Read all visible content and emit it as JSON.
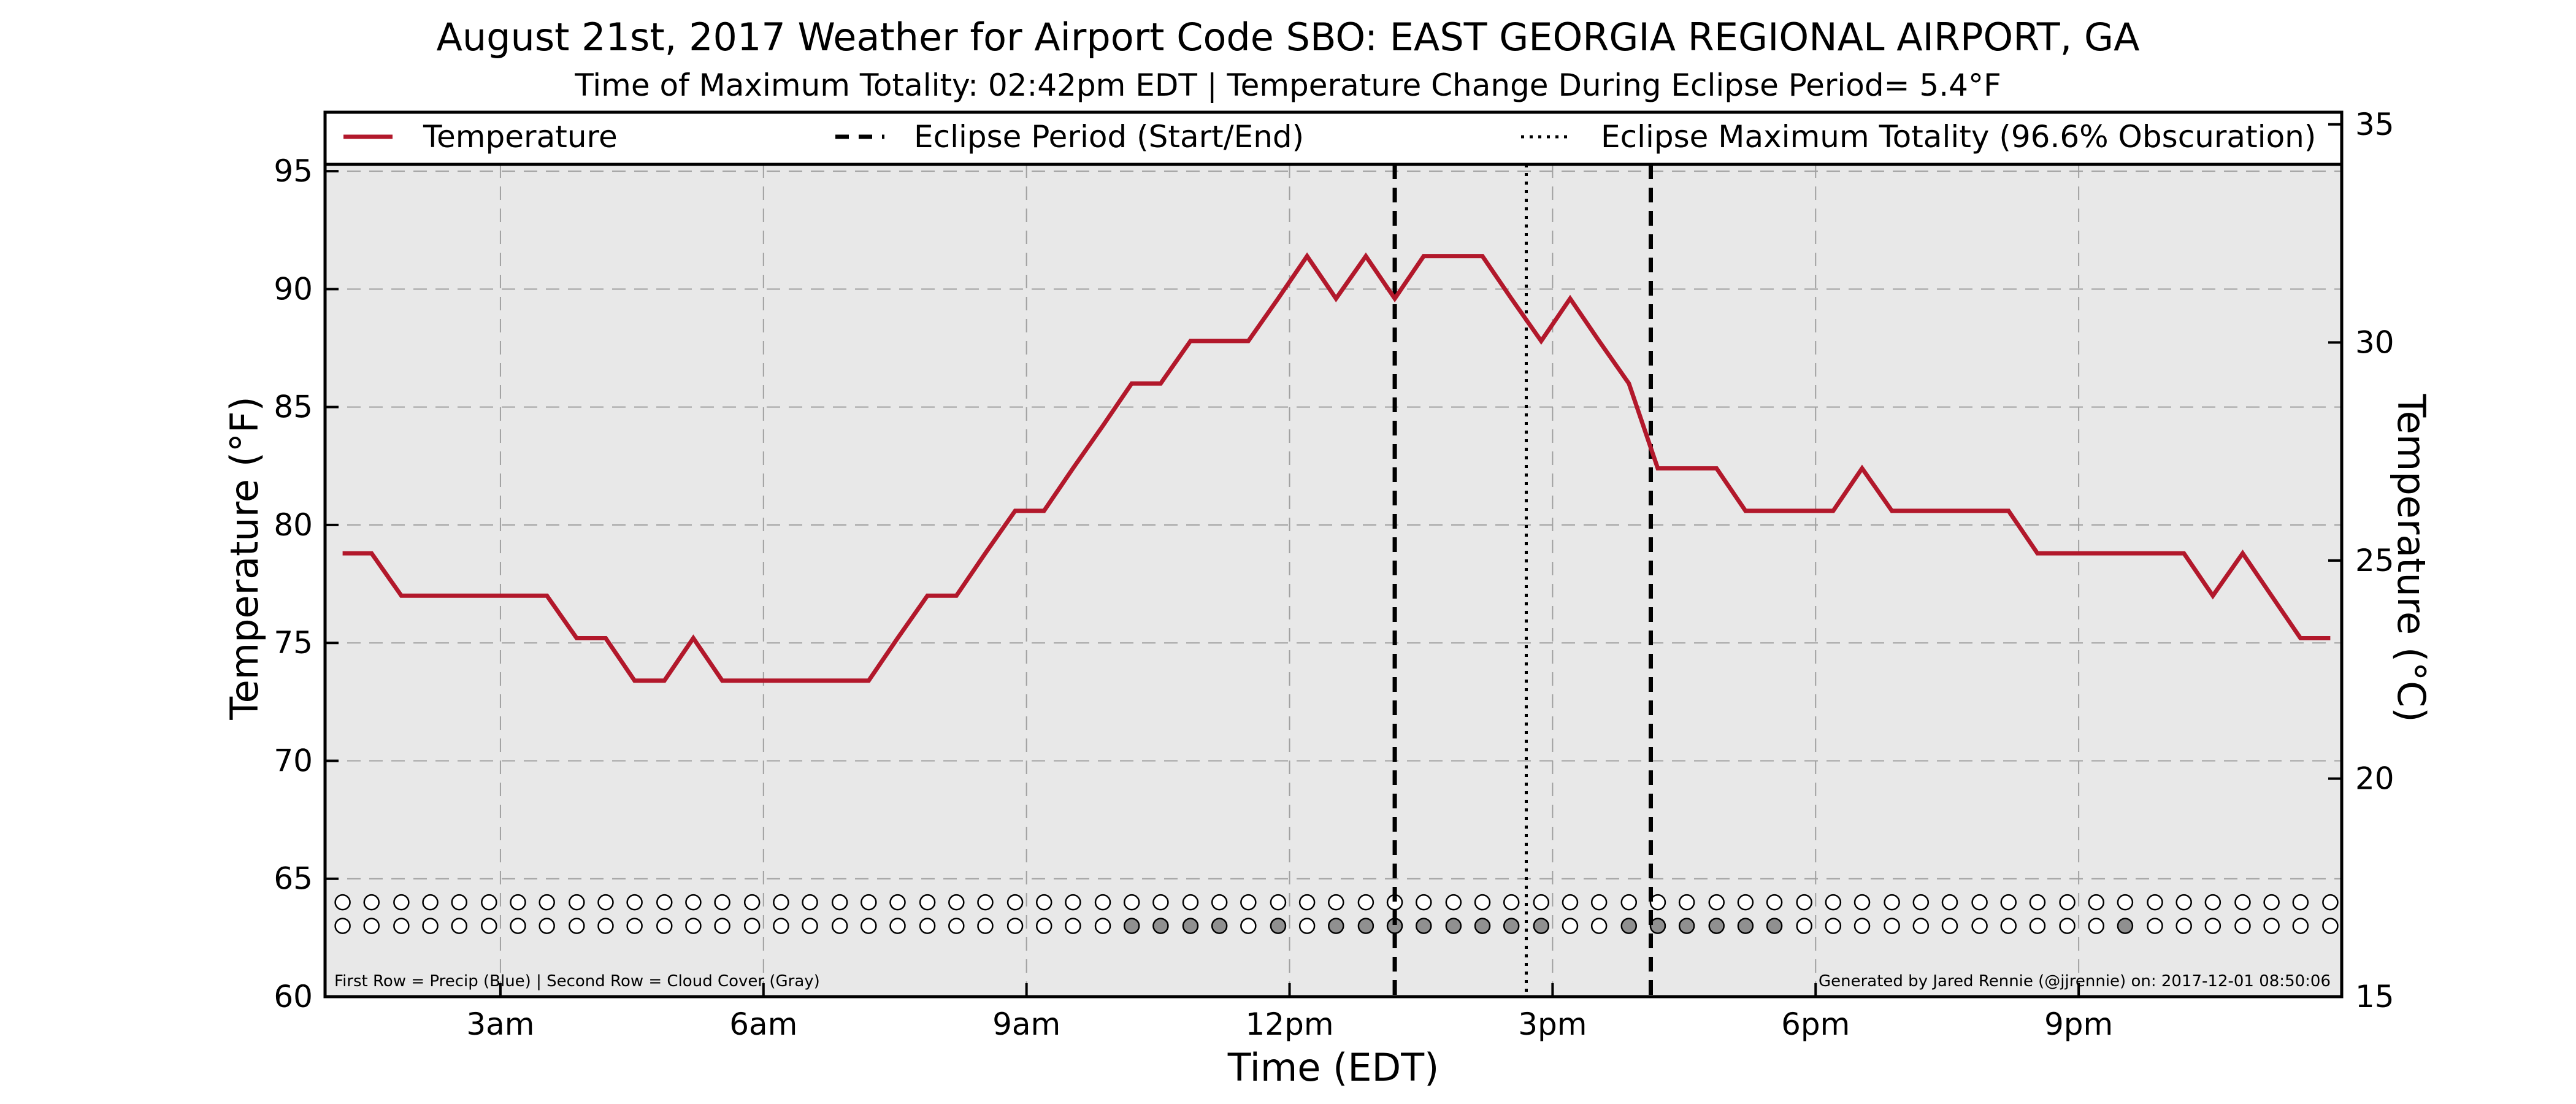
{
  "chart_data": {
    "type": "line",
    "title": "August 21st, 2017 Weather for Airport Code SBO: EAST GEORGIA REGIONAL AIRPORT, GA",
    "subtitle": "Time of Maximum Totality: 02:42pm EDT | Temperature Change During Eclipse Period= 5.4°F",
    "xlabel": "Time (EDT)",
    "ylabel": "Temperature (°F)",
    "ylabel_right": "Temperature (°C)",
    "xlim": [
      1.0,
      24.0
    ],
    "ylim": [
      60,
      97.5
    ],
    "ylim_right": [
      15,
      35.2778
    ],
    "x_ticks": [
      {
        "value": 3,
        "label": "3am"
      },
      {
        "value": 6,
        "label": "6am"
      },
      {
        "value": 9,
        "label": "9am"
      },
      {
        "value": 12,
        "label": "12pm"
      },
      {
        "value": 15,
        "label": "3pm"
      },
      {
        "value": 18,
        "label": "6pm"
      },
      {
        "value": 21,
        "label": "9pm"
      }
    ],
    "y_ticks": [
      60,
      65,
      70,
      75,
      80,
      85,
      90,
      95
    ],
    "y_ticks_right": [
      15,
      20,
      25,
      30,
      35
    ],
    "grid": true,
    "legend_position": "top",
    "series": [
      {
        "name": "Temperature",
        "color": "#b2182b",
        "x": [
          1.2,
          1.53,
          1.87,
          2.2,
          2.53,
          2.87,
          3.2,
          3.53,
          3.87,
          4.2,
          4.53,
          4.87,
          5.2,
          5.53,
          5.87,
          6.2,
          6.53,
          6.87,
          7.2,
          7.53,
          7.87,
          8.2,
          8.53,
          8.87,
          9.2,
          9.53,
          9.87,
          10.2,
          10.53,
          10.87,
          11.2,
          11.53,
          11.87,
          12.2,
          12.53,
          12.87,
          13.2,
          13.53,
          13.87,
          14.2,
          14.53,
          14.87,
          15.2,
          15.53,
          15.87,
          16.2,
          16.53,
          16.87,
          17.2,
          17.53,
          17.87,
          18.2,
          18.53,
          18.87,
          19.2,
          19.53,
          19.87,
          20.2,
          20.53,
          20.87,
          21.2,
          21.53,
          21.87,
          22.2,
          22.53,
          22.87,
          23.2,
          23.53,
          23.87
        ],
        "y": [
          78.8,
          78.8,
          77.0,
          77.0,
          77.0,
          77.0,
          77.0,
          77.0,
          75.2,
          75.2,
          73.4,
          73.4,
          75.2,
          73.4,
          73.4,
          73.4,
          73.4,
          73.4,
          73.4,
          75.2,
          77.0,
          77.0,
          78.8,
          80.6,
          80.6,
          82.4,
          84.2,
          86.0,
          86.0,
          87.8,
          87.8,
          87.8,
          89.6,
          91.4,
          89.6,
          91.4,
          89.6,
          91.4,
          91.4,
          91.4,
          89.6,
          87.8,
          89.6,
          87.8,
          86.0,
          82.4,
          82.4,
          82.4,
          80.6,
          80.6,
          80.6,
          80.6,
          82.4,
          80.6,
          80.6,
          80.6,
          80.6,
          80.6,
          78.8,
          78.8,
          78.8,
          78.8,
          78.8,
          78.8,
          77.0,
          78.8,
          77.0,
          75.2,
          75.2
        ]
      }
    ],
    "eclipse_start": 13.2,
    "eclipse_end": 16.12,
    "eclipse_max": 14.7,
    "dot_rows": {
      "x": [
        1.2,
        1.53,
        1.87,
        2.2,
        2.53,
        2.87,
        3.2,
        3.53,
        3.87,
        4.2,
        4.53,
        4.87,
        5.2,
        5.53,
        5.87,
        6.2,
        6.53,
        6.87,
        7.2,
        7.53,
        7.87,
        8.2,
        8.53,
        8.87,
        9.2,
        9.53,
        9.87,
        10.2,
        10.53,
        10.87,
        11.2,
        11.53,
        11.87,
        12.2,
        12.53,
        12.87,
        13.2,
        13.53,
        13.87,
        14.2,
        14.53,
        14.87,
        15.2,
        15.53,
        15.87,
        16.2,
        16.53,
        16.87,
        17.2,
        17.53,
        17.87,
        18.2,
        18.53,
        18.87,
        19.2,
        19.53,
        19.87,
        20.2,
        20.53,
        20.87,
        21.2,
        21.53,
        21.87,
        22.2,
        22.53,
        22.87,
        23.2,
        23.53,
        23.87
      ],
      "precip_y": 64,
      "cloud_y": 63,
      "precip": [
        0,
        0,
        0,
        0,
        0,
        0,
        0,
        0,
        0,
        0,
        0,
        0,
        0,
        0,
        0,
        0,
        0,
        0,
        0,
        0,
        0,
        0,
        0,
        0,
        0,
        0,
        0,
        0,
        0,
        0,
        0,
        0,
        0,
        0,
        0,
        0,
        0,
        0,
        0,
        0,
        0,
        0,
        0,
        0,
        0,
        0,
        0,
        0,
        0,
        0,
        0,
        0,
        0,
        0,
        0,
        0,
        0,
        0,
        0,
        0,
        0,
        0,
        0,
        0,
        0,
        0,
        0,
        0,
        0
      ],
      "cloud": [
        0,
        0,
        0,
        0,
        0,
        0,
        0,
        0,
        0,
        0,
        0,
        0,
        0,
        0,
        0,
        0,
        0,
        0,
        0,
        0,
        0,
        0,
        0,
        0,
        0,
        0,
        0,
        1,
        1,
        1,
        1,
        0,
        1,
        0,
        1,
        1,
        1,
        1,
        1,
        1,
        1,
        1,
        0,
        0,
        1,
        1,
        1,
        1,
        1,
        1,
        0,
        0,
        0,
        0,
        0,
        0,
        0,
        0,
        0,
        0,
        0,
        1,
        0,
        0,
        0,
        0,
        0,
        0,
        0
      ],
      "precip_color": "#ffffff",
      "cloud_color_filled": "#909090"
    }
  },
  "legend": {
    "temperature": "Temperature",
    "eclipse_period": "Eclipse Period (Start/End)",
    "eclipse_max": "Eclipse Maximum Totality (96.6% Obscuration)"
  },
  "notes": {
    "rows": "First Row = Precip (Blue) | Second Row = Cloud Cover (Gray)",
    "credit": "Generated by Jared Rennie (@jjrennie) on: 2017-12-01 08:50:06"
  },
  "colors": {
    "plot_bg": "#e8e8e8",
    "grid": "#a0a0a0",
    "temperature_line": "#b2182b"
  }
}
